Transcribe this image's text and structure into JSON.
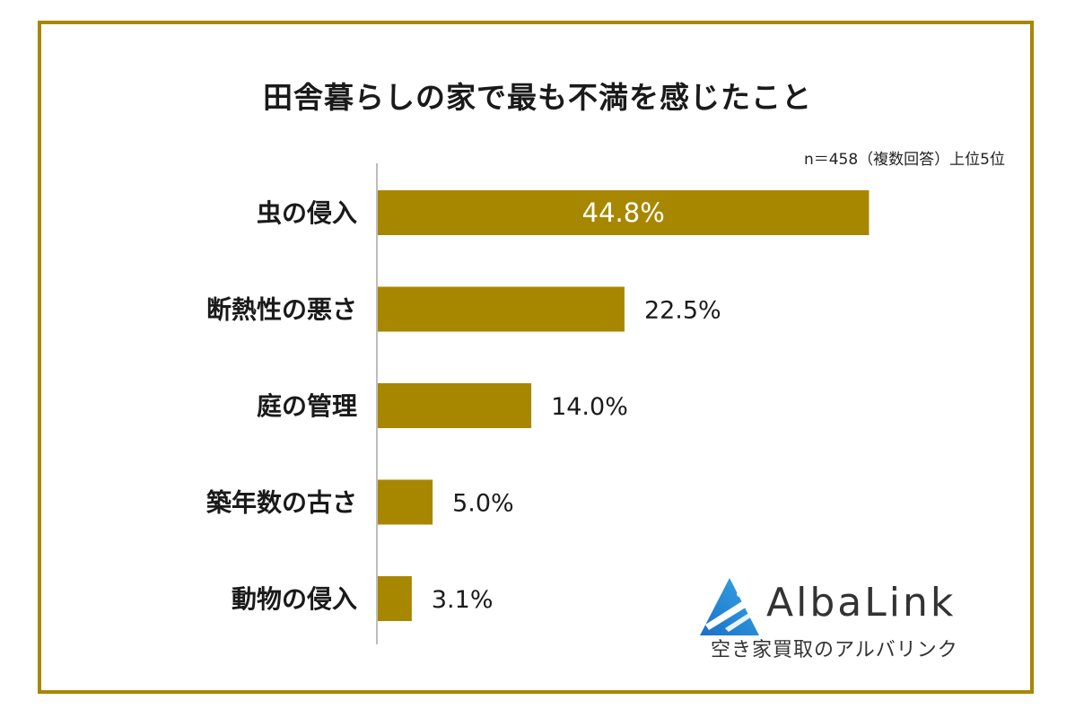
{
  "colors": {
    "accent": "#a88700",
    "text": "#1a1a1a",
    "inner_label": "#ffffff"
  },
  "chart_data": {
    "type": "bar",
    "orientation": "horizontal",
    "title": "田舎暮らしの家で最も不満を感じたこと",
    "note": "n＝458（複数回答）上位5位",
    "categories": [
      "虫の侵入",
      "断熱性の悪さ",
      "庭の管理",
      "築年数の古さ",
      "動物の侵入"
    ],
    "values": [
      44.8,
      22.5,
      14.0,
      5.0,
      3.1
    ],
    "value_labels": [
      "44.8%",
      "22.5%",
      "14.0%",
      "5.0%",
      "3.1%"
    ],
    "xlim": [
      0,
      50
    ],
    "grid": false,
    "legend": "none"
  },
  "logo": {
    "name": "logo",
    "text": "AlbaLink",
    "subtitle": "空き家買取のアルバリンク"
  }
}
